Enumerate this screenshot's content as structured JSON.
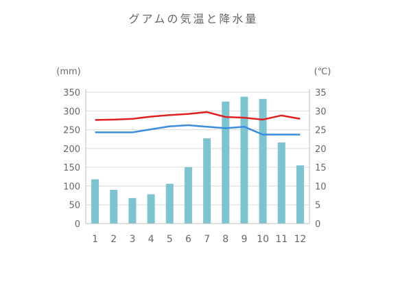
{
  "chart_data": {
    "type": "bar",
    "title": "グアムの気温と降水量",
    "categories": [
      "1",
      "2",
      "3",
      "4",
      "5",
      "6",
      "7",
      "8",
      "9",
      "10",
      "11",
      "12"
    ],
    "left_axis": {
      "unit": "(mm)",
      "ylim": [
        0,
        350
      ],
      "ticks": [
        0,
        50,
        100,
        150,
        200,
        250,
        300,
        350
      ]
    },
    "right_axis": {
      "unit": "(℃)",
      "ylim": [
        0,
        35
      ],
      "ticks": [
        0,
        5,
        10,
        15,
        20,
        25,
        30,
        35
      ]
    },
    "grid": true,
    "series": [
      {
        "kind": "bar",
        "axis": "left",
        "values": [
          118,
          90,
          68,
          78,
          106,
          150,
          227,
          325,
          338,
          332,
          216,
          155
        ]
      },
      {
        "kind": "line",
        "axis": "right",
        "values": [
          27.6,
          27.7,
          27.9,
          28.5,
          28.9,
          29.2,
          29.7,
          28.4,
          28.2,
          27.7,
          28.8,
          27.9
        ]
      },
      {
        "kind": "line",
        "axis": "right",
        "values": [
          24.3,
          24.3,
          24.3,
          25.1,
          25.9,
          26.2,
          25.8,
          25.4,
          25.8,
          23.7,
          23.7,
          23.7
        ]
      }
    ],
    "colors": {
      "bar": "#7cc4d0",
      "line_red": "#e02020",
      "line_blue": "#3a8ddc",
      "grid": "#d9d9d9",
      "text": "#666666"
    }
  }
}
